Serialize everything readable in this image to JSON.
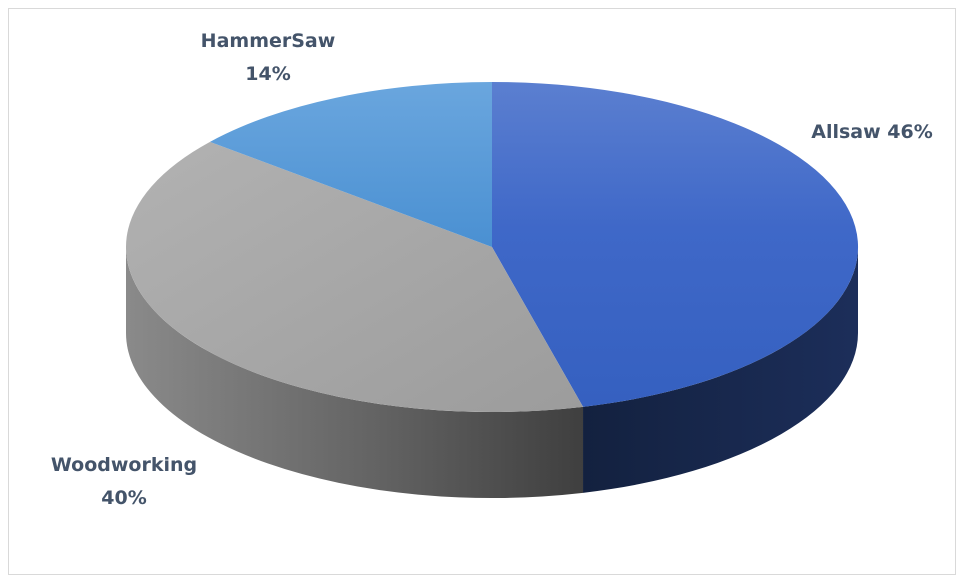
{
  "chart_data": {
    "type": "pie",
    "style": "3d",
    "start": "12 o'clock, clockwise",
    "slices": [
      {
        "label": "Allsaw",
        "value": 46,
        "display": "46%",
        "color": "#3a64c4",
        "side_color": "#1a2b55"
      },
      {
        "label": "Woodworking",
        "value": 40,
        "display": "40%",
        "color": "#a3a3a3",
        "side_color": "#6e6e6e"
      },
      {
        "label": "HammerSaw",
        "value": 14,
        "display": "14%",
        "color": "#5b9bd5",
        "side_color": "#2e5e8e"
      }
    ]
  }
}
